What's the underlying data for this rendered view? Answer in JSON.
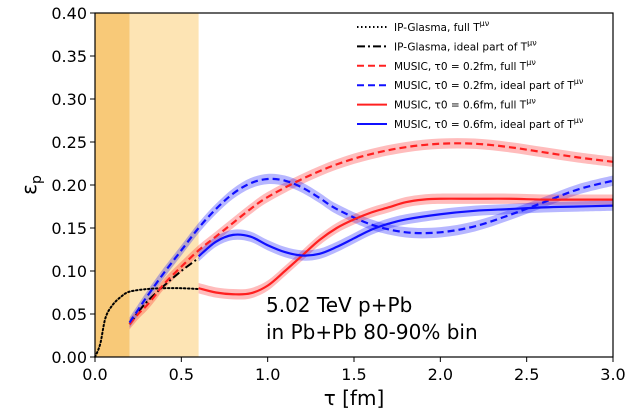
{
  "chart_data": {
    "type": "line",
    "xlabel": "τ [fm]",
    "ylabel": "εp",
    "xlim": [
      0.0,
      3.0
    ],
    "ylim": [
      0.0,
      0.4
    ],
    "xticks": [
      "0.0",
      "0.5",
      "1.0",
      "1.5",
      "2.0",
      "2.5",
      "3.0"
    ],
    "yticks": [
      "0.00",
      "0.05",
      "0.10",
      "0.15",
      "0.20",
      "0.25",
      "0.30",
      "0.35",
      "0.40"
    ],
    "grid": false,
    "legend_position": "top-right",
    "annotation_lines": [
      "5.02 TeV p+Pb",
      "in Pb+Pb 80-90% bin"
    ],
    "shaded_regions": [
      {
        "x": [
          0.0,
          0.2
        ],
        "color": "#f8c978"
      },
      {
        "x": [
          0.2,
          0.6
        ],
        "color": "#fde4b4"
      }
    ],
    "series": [
      {
        "name": "IP-Glasma, full T^μν",
        "color": "#000000",
        "dash": "dotted",
        "band": false,
        "x": [
          0.0,
          0.03,
          0.06,
          0.1,
          0.15,
          0.2,
          0.3,
          0.4,
          0.5,
          0.6
        ],
        "y": [
          0.0,
          0.015,
          0.045,
          0.06,
          0.07,
          0.076,
          0.079,
          0.08,
          0.08,
          0.079
        ]
      },
      {
        "name": "IP-Glasma, ideal part of T^μν",
        "color": "#000000",
        "dash": "dashdot",
        "band": false,
        "x": [
          0.2,
          0.25,
          0.3,
          0.4,
          0.5,
          0.6
        ],
        "y": [
          0.038,
          0.052,
          0.064,
          0.083,
          0.1,
          0.115
        ]
      },
      {
        "name": "MUSIC, τ0 = 0.2fm, full T^μν",
        "color": "#ff2020",
        "dash": "dashed",
        "band": true,
        "x": [
          0.2,
          0.25,
          0.3,
          0.35,
          0.4,
          0.5,
          0.6,
          0.7,
          0.8,
          0.9,
          1.0,
          1.2,
          1.4,
          1.6,
          1.8,
          2.0,
          2.2,
          2.4,
          2.6,
          2.8,
          3.0
        ],
        "y": [
          0.038,
          0.05,
          0.06,
          0.072,
          0.085,
          0.105,
          0.124,
          0.14,
          0.156,
          0.172,
          0.186,
          0.207,
          0.224,
          0.236,
          0.244,
          0.248,
          0.248,
          0.244,
          0.238,
          0.232,
          0.227
        ]
      },
      {
        "name": "MUSIC, τ0 = 0.2fm, ideal part of T^μν",
        "color": "#1010ff",
        "dash": "dashed",
        "band": true,
        "x": [
          0.2,
          0.25,
          0.3,
          0.4,
          0.5,
          0.6,
          0.7,
          0.8,
          0.9,
          1.0,
          1.1,
          1.2,
          1.3,
          1.4,
          1.6,
          1.8,
          2.0,
          2.2,
          2.4,
          2.6,
          2.8,
          3.0
        ],
        "y": [
          0.04,
          0.055,
          0.07,
          0.098,
          0.124,
          0.15,
          0.172,
          0.19,
          0.202,
          0.207,
          0.205,
          0.197,
          0.185,
          0.172,
          0.154,
          0.145,
          0.145,
          0.152,
          0.165,
          0.18,
          0.195,
          0.205
        ]
      },
      {
        "name": "MUSIC, τ0 = 0.6fm, full T^μν",
        "color": "#ff2020",
        "dash": "solid",
        "band": true,
        "x": [
          0.6,
          0.7,
          0.8,
          0.9,
          1.0,
          1.1,
          1.2,
          1.3,
          1.4,
          1.5,
          1.6,
          1.7,
          1.8,
          1.9,
          2.0,
          2.2,
          2.4,
          2.6,
          2.8,
          3.0
        ],
        "y": [
          0.08,
          0.075,
          0.073,
          0.074,
          0.083,
          0.1,
          0.118,
          0.136,
          0.15,
          0.16,
          0.168,
          0.174,
          0.18,
          0.183,
          0.184,
          0.184,
          0.184,
          0.183,
          0.183,
          0.183
        ]
      },
      {
        "name": "MUSIC, τ0 = 0.6fm, ideal part of T^μν",
        "color": "#1010ff",
        "dash": "solid",
        "band": true,
        "x": [
          0.6,
          0.7,
          0.8,
          0.9,
          1.0,
          1.1,
          1.2,
          1.3,
          1.4,
          1.5,
          1.6,
          1.7,
          1.8,
          2.0,
          2.2,
          2.4,
          2.6,
          2.8,
          3.0
        ],
        "y": [
          0.117,
          0.134,
          0.142,
          0.14,
          0.13,
          0.122,
          0.118,
          0.12,
          0.128,
          0.138,
          0.148,
          0.155,
          0.16,
          0.166,
          0.17,
          0.172,
          0.174,
          0.175,
          0.176
        ]
      }
    ]
  },
  "legend": [
    {
      "text": "IP-Glasma, full T",
      "sup": "μν"
    },
    {
      "text": "IP-Glasma, ideal part of T",
      "sup": "μν"
    },
    {
      "text": "MUSIC, τ0 = 0.2fm, full T",
      "sup": "μν"
    },
    {
      "text": "MUSIC, τ0 = 0.2fm, ideal part of T",
      "sup": "μν"
    },
    {
      "text": "MUSIC, τ0 = 0.6fm, full T",
      "sup": "μν"
    },
    {
      "text": "MUSIC, τ0 = 0.6fm, ideal part of T",
      "sup": "μν"
    }
  ]
}
